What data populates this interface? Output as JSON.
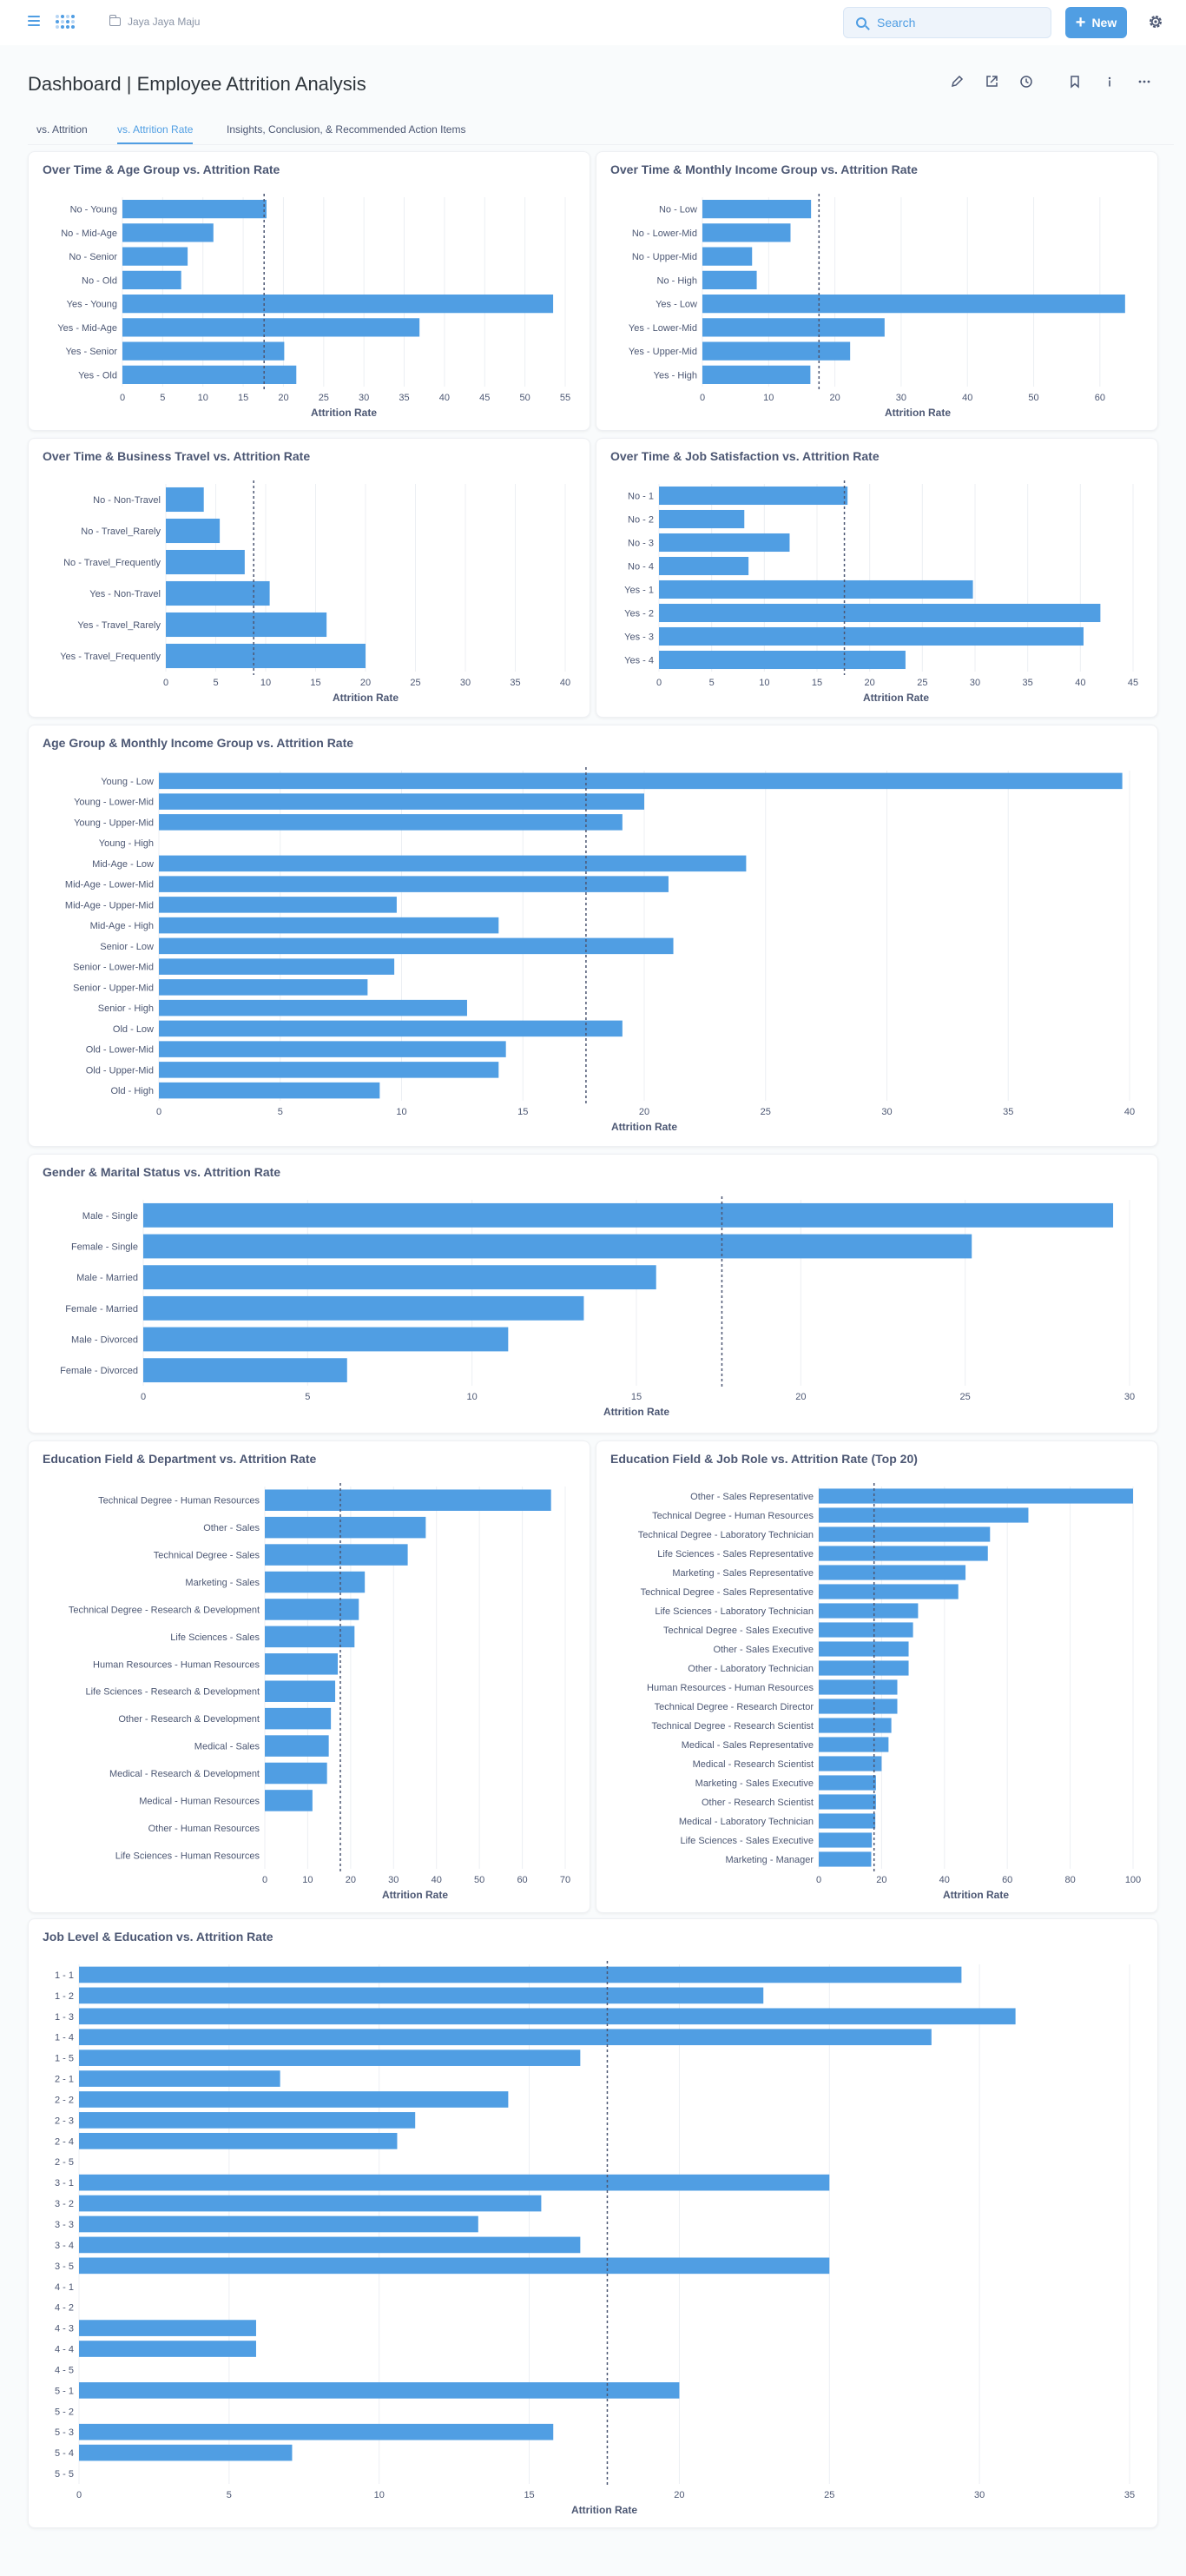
{
  "navbar": {
    "breadcrumb": "Jaya Jaya Maju",
    "search_placeholder": "Search",
    "new_label": "New"
  },
  "dashboard": {
    "title": "Dashboard | Employee Attrition Analysis"
  },
  "tabs": [
    {
      "label": "vs. Attrition"
    },
    {
      "label": "vs. Attrition Rate"
    },
    {
      "label": "Insights, Conclusion, & Recommended Action Items"
    }
  ],
  "accent_color": "#509ee3",
  "chart_data": [
    {
      "id": "c1",
      "type": "bar",
      "title": "Over Time & Age Group vs. Attrition Rate",
      "xlabel": "Attrition Rate",
      "categories": [
        "No - Young",
        "No - Mid-Age",
        "No - Senior",
        "No - Old",
        "Yes - Young",
        "Yes - Mid-Age",
        "Yes - Senior",
        "Yes - Old"
      ],
      "values": [
        17.9,
        11.3,
        8.1,
        7.3,
        53.5,
        36.9,
        20.1,
        21.6
      ],
      "xlim": [
        0,
        55
      ],
      "ticks": [
        0,
        5,
        10,
        15,
        20,
        25,
        30,
        35,
        40,
        45,
        50,
        55
      ],
      "reference": 17.6
    },
    {
      "id": "c2",
      "type": "bar",
      "title": "Over Time & Monthly Income Group vs. Attrition Rate",
      "xlabel": "Attrition Rate",
      "categories": [
        "No - Low",
        "No - Lower-Mid",
        "No - Upper-Mid",
        "No - High",
        "Yes - Low",
        "Yes - Lower-Mid",
        "Yes - Upper-Mid",
        "Yes - High"
      ],
      "values": [
        16.4,
        13.3,
        7.5,
        8.2,
        63.8,
        27.5,
        22.3,
        16.3
      ],
      "xlim": [
        0,
        65
      ],
      "ticks": [
        0,
        10,
        20,
        30,
        40,
        50,
        60
      ],
      "reference": 17.6
    },
    {
      "id": "c3",
      "type": "bar",
      "title": "Over Time & Business Travel vs. Attrition Rate",
      "xlabel": "Attrition Rate",
      "categories": [
        "No - Non-Travel",
        "No - Travel_Rarely",
        "No - Travel_Frequently",
        "Yes - Non-Travel",
        "Yes - Travel_Rarely",
        "Yes - Travel_Frequently"
      ],
      "values": [
        3.8,
        5.4,
        7.9,
        10.4,
        16.1,
        20.0
      ],
      "xlim": [
        0,
        40
      ],
      "ticks": [
        0,
        5,
        10,
        15,
        20,
        25,
        30,
        35,
        40
      ],
      "reference": 8.8,
      "tick_scale": 2
    },
    {
      "id": "c4",
      "type": "bar",
      "title": "Over Time & Job Satisfaction vs. Attrition Rate",
      "xlabel": "Attrition Rate",
      "categories": [
        "No - 1",
        "No - 2",
        "No - 3",
        "No - 4",
        "Yes - 1",
        "Yes - 2",
        "Yes - 3",
        "Yes - 4"
      ],
      "values": [
        17.9,
        8.1,
        12.4,
        8.5,
        29.8,
        41.9,
        40.3,
        23.4
      ],
      "xlim": [
        0,
        45
      ],
      "ticks": [
        0,
        5,
        10,
        15,
        20,
        25,
        30,
        35,
        40,
        45
      ],
      "reference": 17.6
    },
    {
      "id": "c5",
      "type": "bar",
      "title": "Age Group & Monthly Income Group vs. Attrition Rate",
      "xlabel": "Attrition Rate",
      "categories": [
        "Young - Low",
        "Young - Lower-Mid",
        "Young - Upper-Mid",
        "Young - High",
        "Mid-Age - Low",
        "Mid-Age - Lower-Mid",
        "Mid-Age - Upper-Mid",
        "Mid-Age - High",
        "Senior - Low",
        "Senior - Lower-Mid",
        "Senior - Upper-Mid",
        "Senior - High",
        "Old - Low",
        "Old - Lower-Mid",
        "Old - Upper-Mid",
        "Old - High"
      ],
      "values": [
        39.7,
        20.0,
        19.1,
        0,
        24.2,
        21.0,
        9.8,
        14.0,
        21.2,
        9.7,
        8.6,
        12.7,
        19.1,
        14.3,
        14.0,
        9.1
      ],
      "xlim": [
        0,
        40
      ],
      "ticks": [
        0,
        5,
        10,
        15,
        20,
        25,
        30,
        35,
        40
      ],
      "reference": 17.6
    },
    {
      "id": "c6",
      "type": "bar",
      "title": "Gender & Marital Status vs. Attrition Rate",
      "xlabel": "Attrition Rate",
      "categories": [
        "Male - Single",
        "Female - Single",
        "Male - Married",
        "Female - Married",
        "Male - Divorced",
        "Female - Divorced"
      ],
      "values": [
        29.5,
        25.2,
        15.6,
        13.4,
        11.1,
        6.2
      ],
      "xlim": [
        0,
        30
      ],
      "ticks": [
        0,
        5,
        10,
        15,
        20,
        25,
        30
      ],
      "reference": 17.6
    },
    {
      "id": "c7",
      "type": "bar",
      "title": "Education Field & Department vs. Attrition Rate",
      "xlabel": "Attrition Rate",
      "categories": [
        "Technical Degree - Human Resources",
        "Other - Sales",
        "Technical Degree - Sales",
        "Marketing - Sales",
        "Technical Degree - Research & Development",
        "Life Sciences - Sales",
        "Human Resources - Human Resources",
        "Life Sciences - Research & Development",
        "Other - Research & Development",
        "Medical - Sales",
        "Medical - Research & Development",
        "Medical - Human Resources",
        "Other - Human Resources",
        "Life Sciences - Human Resources"
      ],
      "values": [
        66.7,
        37.5,
        33.3,
        23.3,
        21.9,
        20.9,
        17.0,
        16.4,
        15.4,
        14.9,
        14.5,
        11.1,
        0,
        0
      ],
      "xlim": [
        0,
        70
      ],
      "ticks": [
        0,
        10,
        20,
        30,
        40,
        50,
        60,
        70
      ],
      "reference": 17.6
    },
    {
      "id": "c8",
      "type": "bar",
      "title": "Education Field & Job Role vs. Attrition Rate (Top 20)",
      "xlabel": "Attrition Rate",
      "categories": [
        "Other - Sales Representative",
        "Technical Degree - Human Resources",
        "Technical Degree - Laboratory Technician",
        "Life Sciences - Sales Representative",
        "Marketing - Sales Representative",
        "Technical Degree - Sales Representative",
        "Life Sciences - Laboratory Technician",
        "Technical Degree - Sales Executive",
        "Other - Sales Executive",
        "Other - Laboratory Technician",
        "Human Resources - Human Resources",
        "Technical Degree - Research Director",
        "Technical Degree - Research Scientist",
        "Medical - Sales Representative",
        "Medical - Research Scientist",
        "Marketing - Sales Executive",
        "Other - Research Scientist",
        "Medical - Laboratory Technician",
        "Life Sciences - Sales Executive",
        "Marketing - Manager"
      ],
      "values": [
        100,
        66.7,
        54.5,
        53.8,
        46.7,
        44.4,
        31.6,
        30.0,
        28.6,
        28.6,
        25.0,
        25.0,
        23.1,
        22.2,
        20.0,
        18.2,
        18.2,
        18.0,
        16.9,
        16.7
      ],
      "xlim": [
        0,
        100
      ],
      "ticks": [
        0,
        20,
        40,
        60,
        80,
        100
      ],
      "reference": 17.6
    },
    {
      "id": "c9",
      "type": "bar",
      "title": "Job Level & Education vs. Attrition Rate",
      "xlabel": "Attrition Rate",
      "categories": [
        "1 - 1",
        "1 - 2",
        "1 - 3",
        "1 - 4",
        "1 - 5",
        "2 - 1",
        "2 - 2",
        "2 - 3",
        "2 - 4",
        "2 - 5",
        "3 - 1",
        "3 - 2",
        "3 - 3",
        "3 - 4",
        "3 - 5",
        "4 - 1",
        "4 - 2",
        "4 - 3",
        "4 - 4",
        "4 - 5",
        "5 - 1",
        "5 - 2",
        "5 - 3",
        "5 - 4",
        "5 - 5"
      ],
      "values": [
        29.4,
        22.8,
        31.2,
        28.4,
        16.7,
        6.7,
        14.3,
        11.2,
        10.6,
        0,
        25.0,
        15.4,
        13.3,
        16.7,
        25.0,
        0,
        0,
        5.9,
        5.9,
        0,
        20.0,
        0,
        15.8,
        7.1,
        0
      ],
      "xlim": [
        0,
        35
      ],
      "ticks": [
        0,
        5,
        10,
        15,
        20,
        25,
        30,
        35
      ],
      "reference": 17.6
    }
  ]
}
